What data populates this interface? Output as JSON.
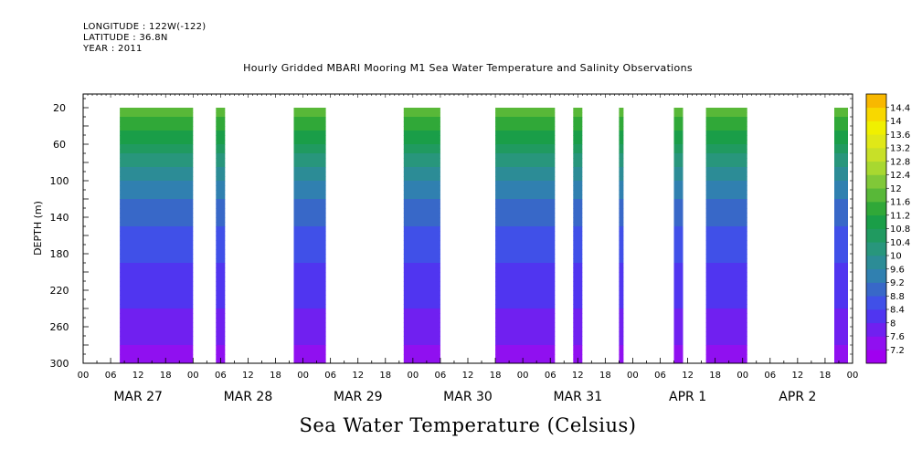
{
  "header": {
    "longitude": "LONGITUDE : 122W(-122)",
    "latitude": "LATITUDE : 36.8N",
    "year": "YEAR : 2011"
  },
  "chart_data": {
    "type": "heatmap",
    "title": "Hourly Gridded MBARI Mooring M1 Sea Water Temperature and Salinity Observations",
    "bottom_title": "Sea Water Temperature (Celsius)",
    "ylabel": "DEPTH (m)",
    "y_inverted": true,
    "ylim": [
      300,
      5
    ],
    "y_ticks": [
      20,
      60,
      100,
      140,
      180,
      220,
      260,
      300
    ],
    "x_range_hours": [
      0,
      168
    ],
    "x_hour_tick_labels": [
      "00",
      "06",
      "12",
      "18",
      "00",
      "06",
      "12",
      "18",
      "00",
      "06",
      "12",
      "18",
      "00",
      "06",
      "12",
      "18",
      "00",
      "06",
      "12",
      "18",
      "00",
      "06",
      "12",
      "18",
      "00",
      "06",
      "12",
      "18",
      "00"
    ],
    "date_labels": [
      "MAR 27",
      "MAR 28",
      "MAR 29",
      "MAR 30",
      "MAR 31",
      "APR  1",
      "APR  2"
    ],
    "colorbar": {
      "levels": [
        7.2,
        7.6,
        8,
        8.4,
        8.8,
        9.2,
        9.6,
        10,
        10.4,
        10.8,
        11.2,
        11.6,
        12,
        12.4,
        12.8,
        13.2,
        13.6,
        14,
        14.4
      ],
      "label_values": [
        "7.2",
        "7.6",
        "8",
        "8.4",
        "8.8",
        "9.2",
        "9.6",
        "10",
        "10.4",
        "10.8",
        "11.2",
        "11.6",
        "12",
        "12.4",
        "12.8",
        "13.2",
        "13.6",
        "14",
        "14.4"
      ],
      "colors": [
        "#a000f0",
        "#9010f0",
        "#7020f0",
        "#5035f0",
        "#4050e8",
        "#3868c8",
        "#3080b0",
        "#2c8c96",
        "#28967c",
        "#209a60",
        "#1a9e48",
        "#30a838",
        "#58b838",
        "#80c838",
        "#a8d830",
        "#c8e028",
        "#e0e818",
        "#f0f000",
        "#f8d800",
        "#f8b800",
        "#f09000",
        "#e86010",
        "#e03010",
        "#c80000",
        "#a00000"
      ]
    },
    "data_segments_hours": [
      [
        8,
        24
      ],
      [
        29,
        31
      ],
      [
        46,
        53
      ],
      [
        70,
        78
      ],
      [
        90,
        103
      ],
      [
        107,
        109
      ],
      [
        117,
        118
      ],
      [
        129,
        131
      ],
      [
        136,
        145
      ],
      [
        164,
        167
      ]
    ],
    "depth_profile": {
      "depths": [
        20,
        40,
        60,
        80,
        100,
        120,
        140,
        160,
        180,
        200,
        220,
        240,
        260,
        280,
        300
      ],
      "temperature": [
        11.9,
        11.4,
        10.8,
        10.1,
        9.6,
        9.2,
        8.9,
        8.7,
        8.5,
        8.3,
        8.1,
        8.0,
        7.8,
        7.6,
        7.4
      ]
    }
  }
}
